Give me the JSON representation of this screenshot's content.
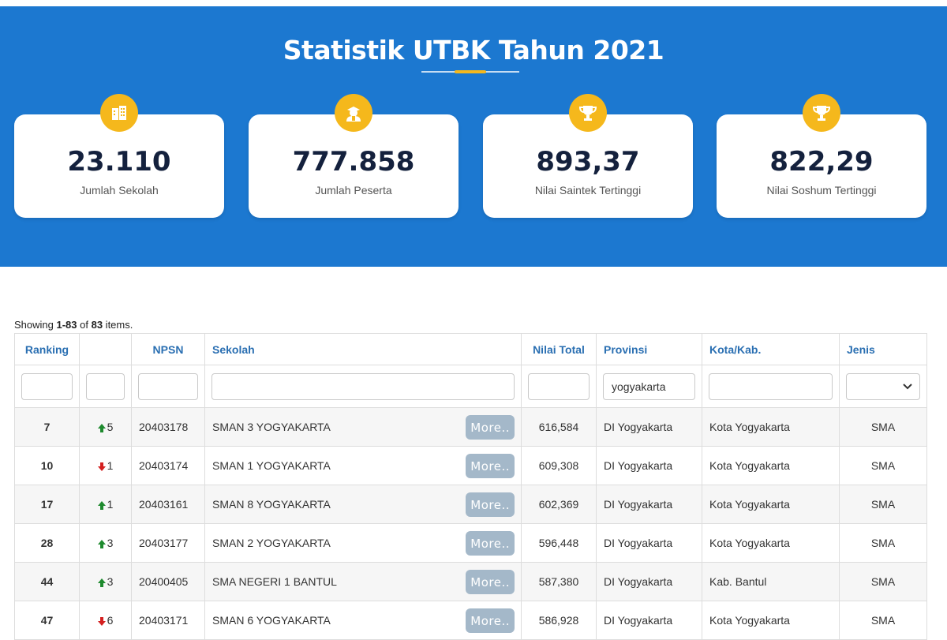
{
  "hero": {
    "title": "Statistik UTBK Tahun 2021",
    "accent_color": "#f5b81c",
    "background_color": "#1c78d0"
  },
  "stats": [
    {
      "icon": "building-icon",
      "value": "23.110",
      "label": "Jumlah Sekolah"
    },
    {
      "icon": "student-icon",
      "value": "777.858",
      "label": "Jumlah Peserta"
    },
    {
      "icon": "trophy-icon",
      "value": "893,37",
      "label": "Nilai Saintek Tertinggi"
    },
    {
      "icon": "trophy-icon",
      "value": "822,29",
      "label": "Nilai Soshum Tertinggi"
    }
  ],
  "summary": {
    "prefix": "Showing ",
    "range": "1-83",
    "middle": " of ",
    "total": "83",
    "suffix": " items."
  },
  "table": {
    "columns": [
      "Ranking",
      "",
      "NPSN",
      "Sekolah",
      "Nilai Total",
      "Provinsi",
      "Kota/Kab.",
      "Jenis"
    ],
    "filters": {
      "ranking": "",
      "trend": "",
      "npsn": "",
      "sekolah": "",
      "nilai_total": "",
      "provinsi": "yogyakarta",
      "kota": "",
      "jenis": ""
    },
    "more_label": "More..",
    "rows": [
      {
        "ranking": "7",
        "trend": "up",
        "change": "5",
        "npsn": "20403178",
        "sekolah": "SMAN 3 YOGYAKARTA",
        "nilai_total": "616,584",
        "provinsi": "DI Yogyakarta",
        "kota": "Kota Yogyakarta",
        "jenis": "SMA"
      },
      {
        "ranking": "10",
        "trend": "down",
        "change": "1",
        "npsn": "20403174",
        "sekolah": "SMAN 1 YOGYAKARTA",
        "nilai_total": "609,308",
        "provinsi": "DI Yogyakarta",
        "kota": "Kota Yogyakarta",
        "jenis": "SMA"
      },
      {
        "ranking": "17",
        "trend": "up",
        "change": "1",
        "npsn": "20403161",
        "sekolah": "SMAN 8 YOGYAKARTA",
        "nilai_total": "602,369",
        "provinsi": "DI Yogyakarta",
        "kota": "Kota Yogyakarta",
        "jenis": "SMA"
      },
      {
        "ranking": "28",
        "trend": "up",
        "change": "3",
        "npsn": "20403177",
        "sekolah": "SMAN 2 YOGYAKARTA",
        "nilai_total": "596,448",
        "provinsi": "DI Yogyakarta",
        "kota": "Kota Yogyakarta",
        "jenis": "SMA"
      },
      {
        "ranking": "44",
        "trend": "up",
        "change": "3",
        "npsn": "20400405",
        "sekolah": "SMA NEGERI 1 BANTUL",
        "nilai_total": "587,380",
        "provinsi": "DI Yogyakarta",
        "kota": "Kab. Bantul",
        "jenis": "SMA"
      },
      {
        "ranking": "47",
        "trend": "down",
        "change": "6",
        "npsn": "20403171",
        "sekolah": "SMAN 6 YOGYAKARTA",
        "nilai_total": "586,928",
        "provinsi": "DI Yogyakarta",
        "kota": "Kota Yogyakarta",
        "jenis": "SMA"
      }
    ],
    "trend_colors": {
      "up": "#1e8a2e",
      "down": "#d42020"
    }
  }
}
